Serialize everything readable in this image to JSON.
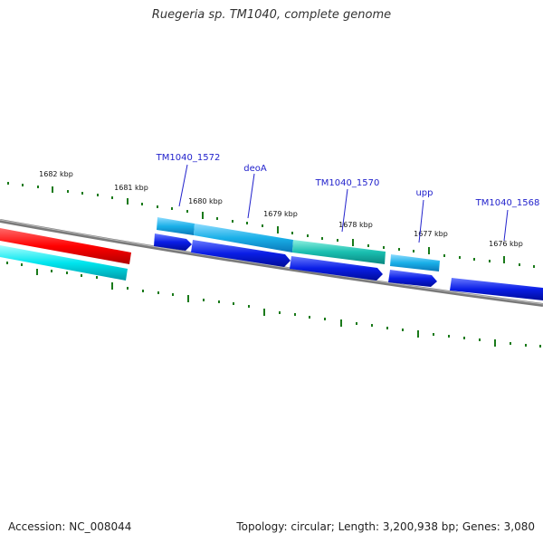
{
  "title": "Ruegeria sp. TM1040, complete genome",
  "footer": {
    "accession": "Accession: NC_008044",
    "topology": "Topology: circular; Length: 3,200,938 bp; Genes: 3,080"
  },
  "scale_labels": [
    "1682 kbp",
    "1681 kbp",
    "1680 kbp",
    "1679 kbp",
    "1678 kbp",
    "1677 kbp",
    "1676 kbp"
  ],
  "gene_labels": [
    "TM1040_1572",
    "deoA",
    "TM1040_1570",
    "upp",
    "TM1040_1568"
  ],
  "colors": {
    "backbone": "#7a7a7a",
    "tick": "#1a7a1a",
    "gene_label": "#2222cc",
    "red_feature": "#ff0000",
    "cyan_feature": "#00e5ee",
    "light_blue_feature": "#1ab0e8",
    "teal_feature": "#1abfb0",
    "dark_blue_feature": "#0a1ee6"
  }
}
